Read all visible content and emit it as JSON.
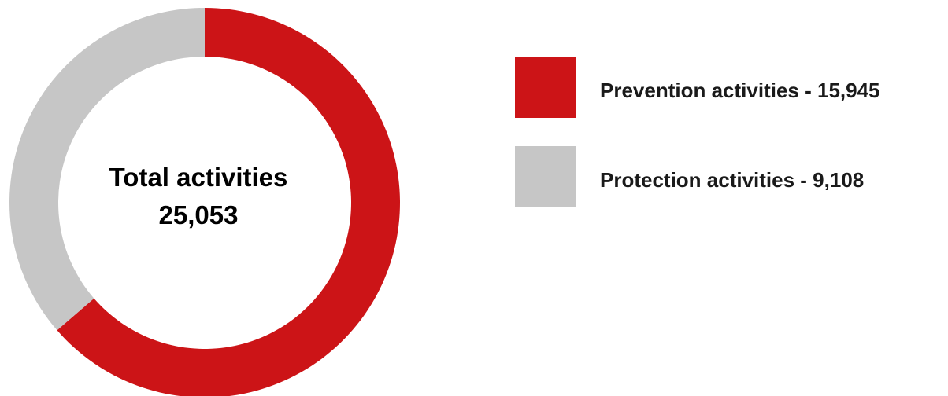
{
  "chart_data": {
    "type": "pie",
    "center": {
      "label": "Total activities",
      "value": "25,053"
    },
    "slices": [
      {
        "name": "Prevention activities",
        "value": 15945,
        "display": "Prevention activities - 15,945",
        "color": "#cc1417"
      },
      {
        "name": "Protection activities",
        "value": 9108,
        "display": "Protection activities - 9,108",
        "color": "#c6c6c6"
      }
    ],
    "legend_position": "right"
  }
}
